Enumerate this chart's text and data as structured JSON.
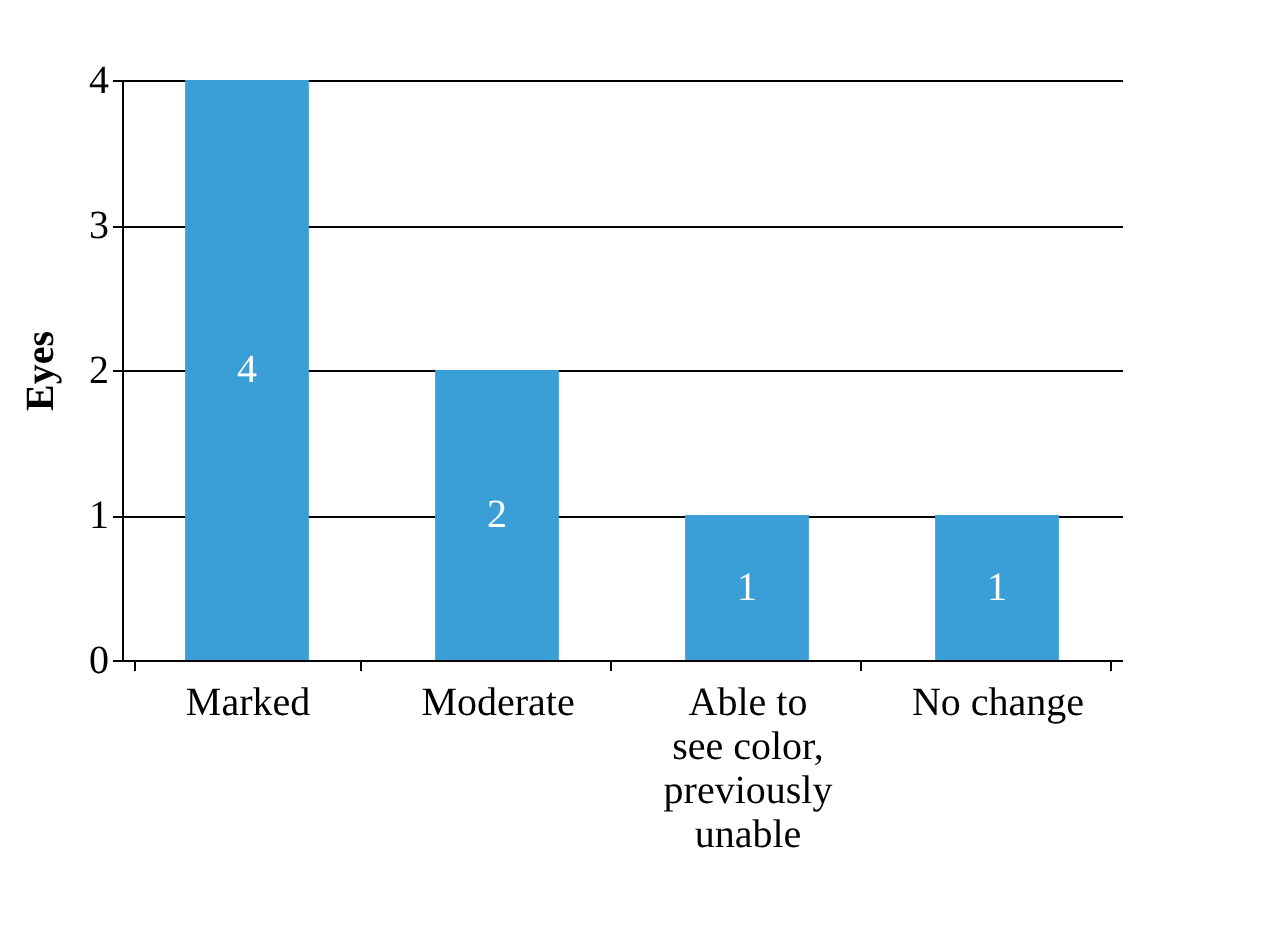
{
  "chart_data": {
    "type": "bar",
    "ylabel": "Eyes",
    "categories": [
      "Marked",
      "Moderate",
      "Able to see color, previously unable",
      "No change"
    ],
    "values": [
      4,
      2,
      1,
      1
    ],
    "color": "#3a9fd6",
    "ylim": [
      0,
      4
    ],
    "yticks": [
      0,
      1,
      2,
      3,
      4
    ],
    "grid": "y",
    "data_labels": true
  }
}
